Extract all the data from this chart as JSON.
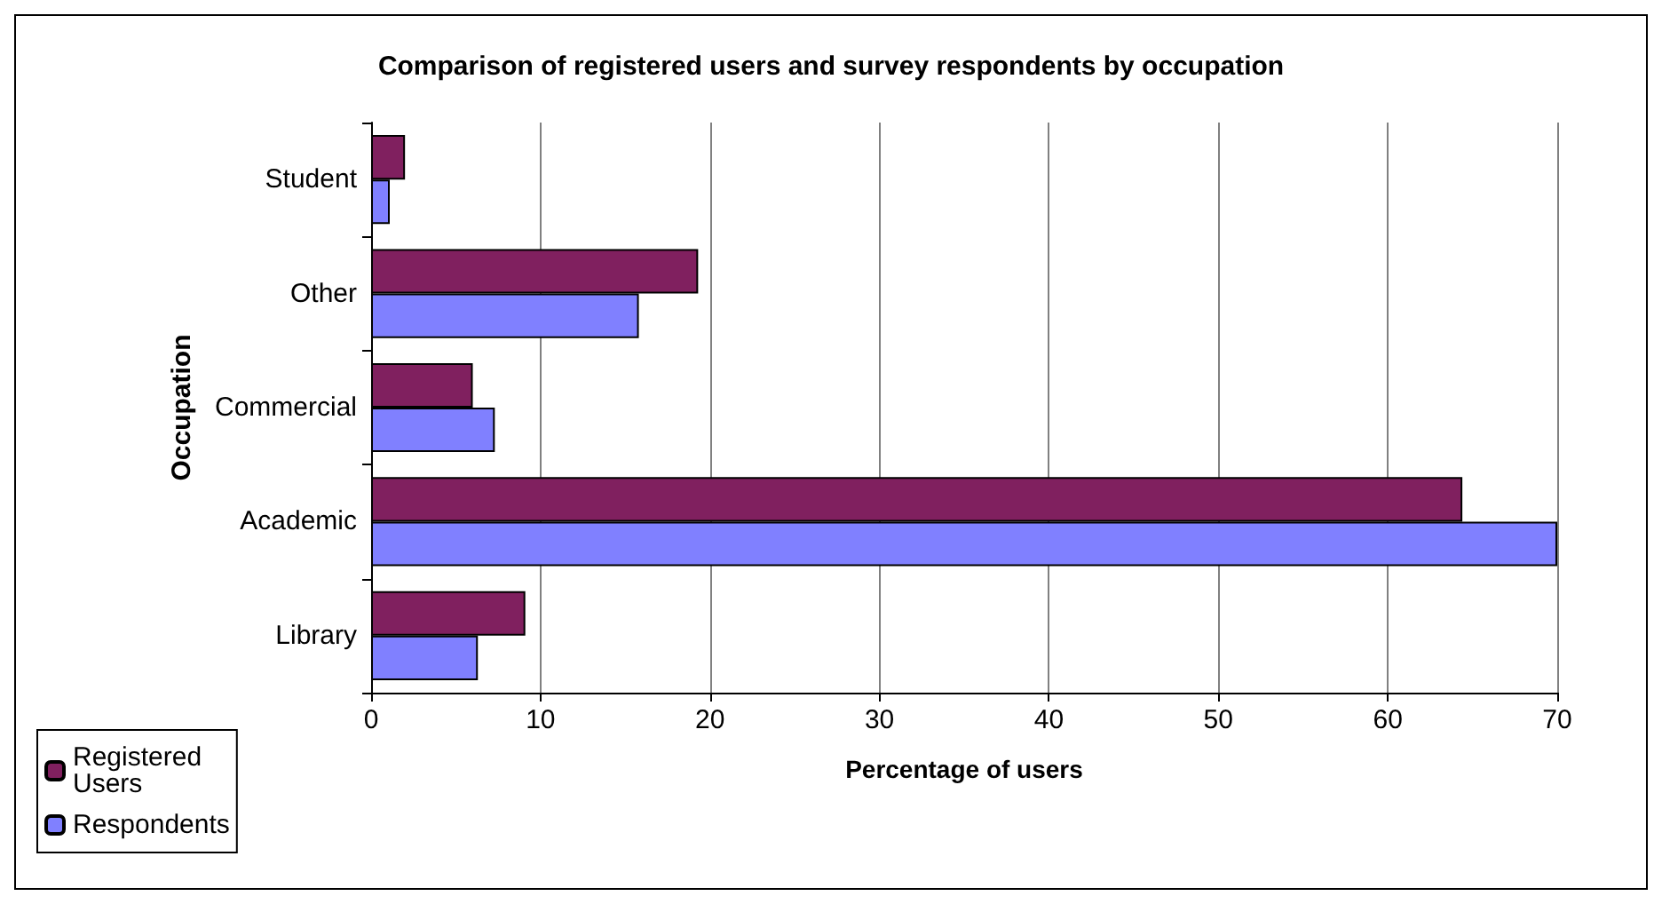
{
  "chart_data": {
    "type": "bar",
    "orientation": "horizontal",
    "title": "Comparison of registered users and survey respondents by occupation",
    "xlabel": "Percentage of users",
    "ylabel": "Occupation",
    "categories": [
      "Student",
      "Other",
      "Commercial",
      "Academic",
      "Library"
    ],
    "series": [
      {
        "name": "Registered Users",
        "color": "#80205f",
        "values": [
          2,
          19.3,
          6,
          64.4,
          9.1
        ]
      },
      {
        "name": "Respondents",
        "color": "#8080ff",
        "values": [
          1.1,
          15.8,
          7.3,
          70,
          6.3
        ]
      }
    ],
    "xlim": [
      0,
      70
    ],
    "xticks": [
      0,
      10,
      20,
      30,
      40,
      50,
      60,
      70
    ],
    "grid": "x",
    "legend": "bottom left"
  }
}
